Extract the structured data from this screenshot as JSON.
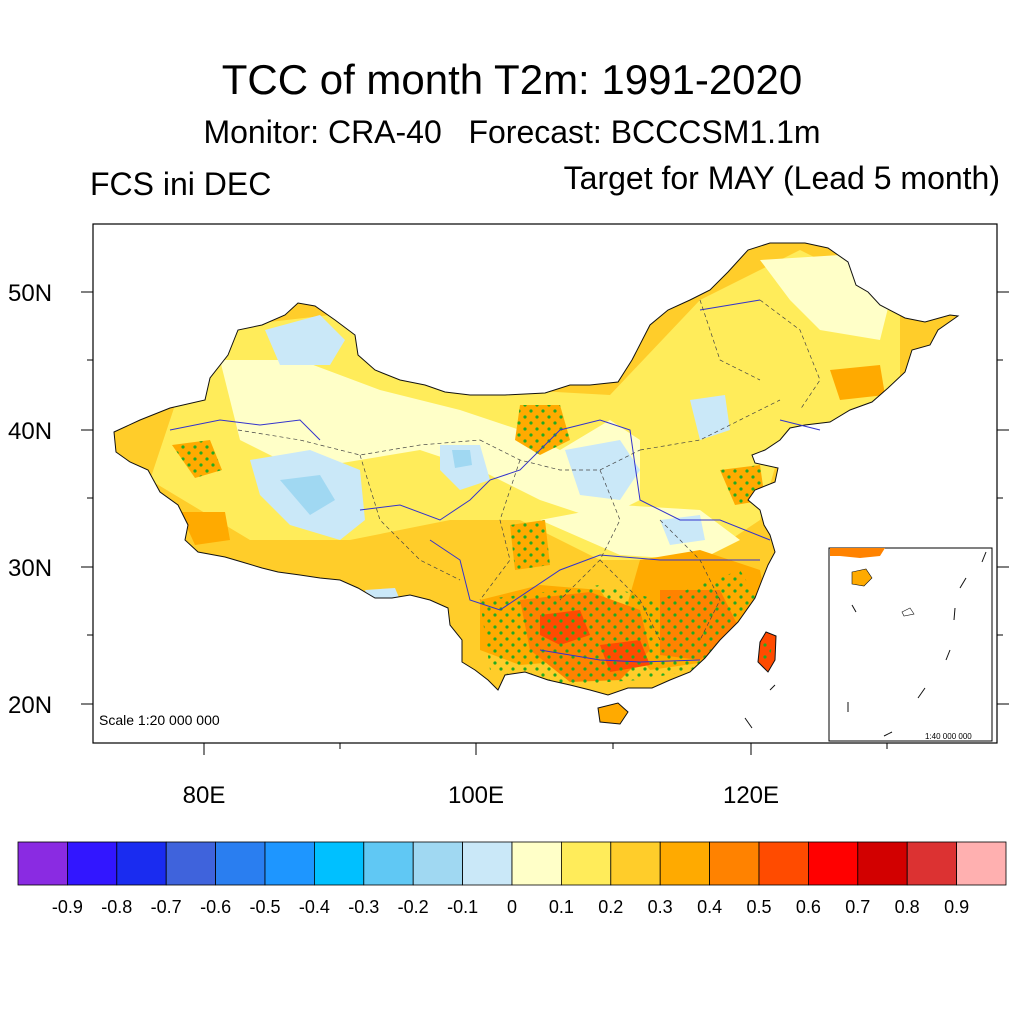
{
  "title": "TCC of month T2m: 1991-2020",
  "subtitle": "Monitor: CRA-40   Forecast: BCCCSM1.1m",
  "left_label": "FCS ini DEC",
  "right_label": "Target for MAY (Lead 5 month)",
  "map": {
    "scale_main": "Scale 1:20 000 000",
    "scale_inset": "1:40 000 000",
    "lat_labels": [
      "50N",
      "40N",
      "30N",
      "20N"
    ],
    "lon_labels": [
      "80E",
      "100E",
      "120E"
    ]
  },
  "colorbar": {
    "colors": [
      "#8a2be2",
      "#3216ff",
      "#1a2cf0",
      "#3f63dc",
      "#2a7ef0",
      "#1e96ff",
      "#00c0ff",
      "#60c8f4",
      "#a0d8f2",
      "#cae8f8",
      "#ffffc8",
      "#ffec5a",
      "#ffcd2a",
      "#ffaa00",
      "#ff8200",
      "#ff4b00",
      "#ff0000",
      "#d20000",
      "#dc3232",
      "#ffb0b0"
    ],
    "labels": [
      "-0.9",
      "-0.8",
      "-0.7",
      "-0.6",
      "-0.5",
      "-0.4",
      "-0.3",
      "-0.2",
      "-0.1",
      "0",
      "0.1",
      "0.2",
      "0.3",
      "0.4",
      "0.5",
      "0.6",
      "0.7",
      "0.8",
      "0.9"
    ]
  }
}
